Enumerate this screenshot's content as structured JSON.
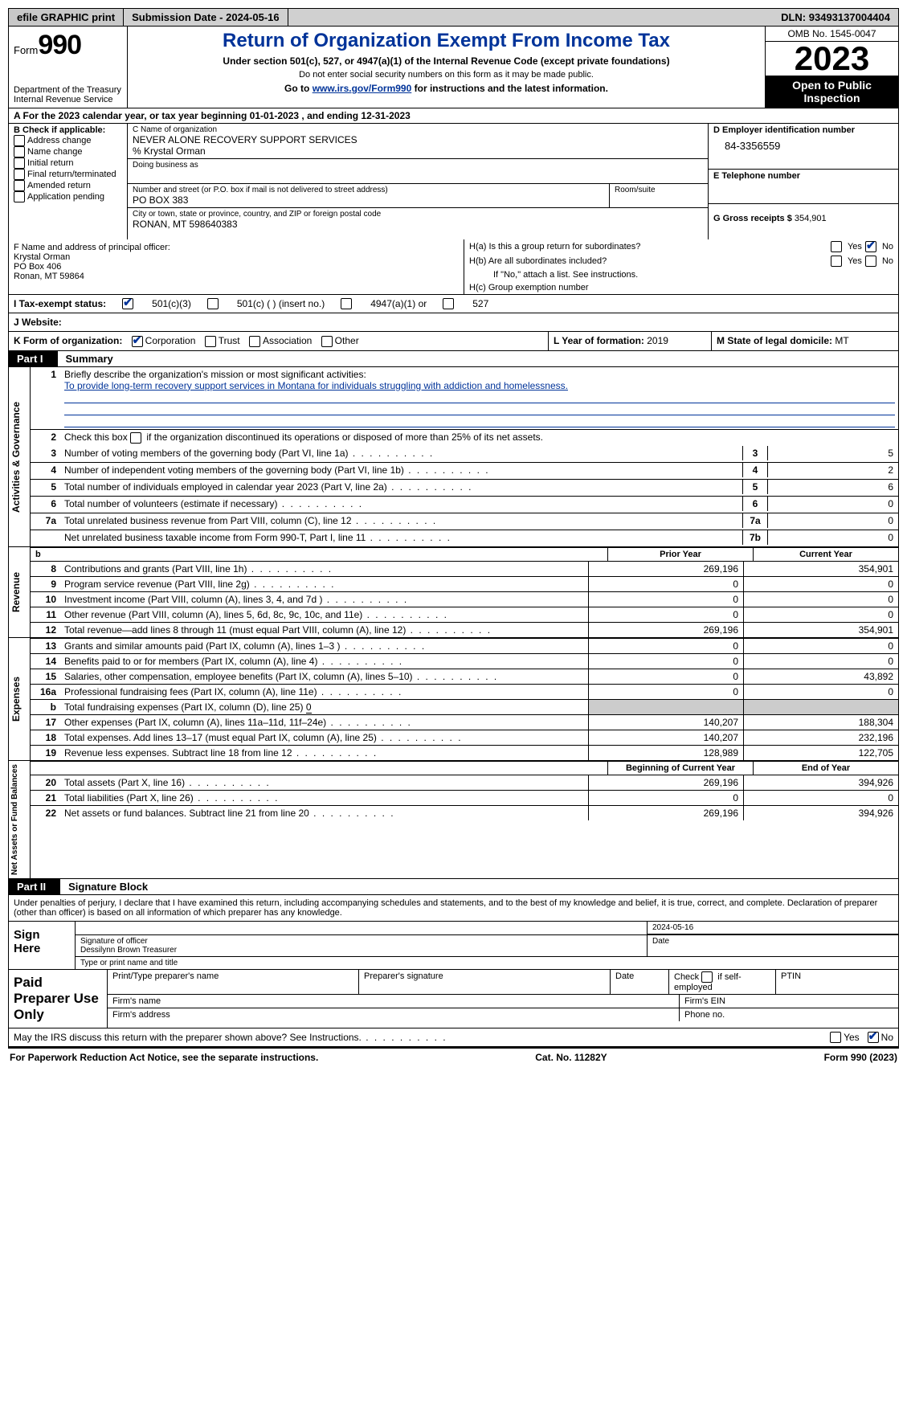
{
  "topbar": {
    "efile": "efile GRAPHIC print",
    "submission_label": "Submission Date - ",
    "submission_date": "2024-05-16",
    "dln_label": "DLN: ",
    "dln": "93493137004404"
  },
  "header": {
    "form_word": "Form",
    "form_no": "990",
    "dept": "Department of the Treasury\nInternal Revenue Service",
    "title": "Return of Organization Exempt From Income Tax",
    "sub1": "Under section 501(c), 527, or 4947(a)(1) of the Internal Revenue Code (except private foundations)",
    "sub2": "Do not enter social security numbers on this form as it may be made public.",
    "sub3_pre": "Go to ",
    "sub3_link": "www.irs.gov/Form990",
    "sub3_post": " for instructions and the latest information.",
    "omb": "OMB No. 1545-0047",
    "year": "2023",
    "opento": "Open to Public Inspection"
  },
  "row_a": {
    "text_pre": "A For the 2023 calendar year, or tax year beginning ",
    "begin": "01-01-2023",
    "mid": "   , and ending ",
    "end": "12-31-2023"
  },
  "box_b": {
    "title": "B Check if applicable:",
    "opts": [
      "Address change",
      "Name change",
      "Initial return",
      "Final return/terminated",
      "Amended return",
      "Application pending"
    ]
  },
  "box_c": {
    "label_name": "C Name of organization",
    "name": "NEVER ALONE RECOVERY SUPPORT SERVICES",
    "care_of": "% Krystal Orman",
    "dba_label": "Doing business as",
    "addr_label": "Number and street (or P.O. box if mail is not delivered to street address)",
    "room_label": "Room/suite",
    "addr": "PO BOX 383",
    "city_label": "City or town, state or province, country, and ZIP or foreign postal code",
    "city": "RONAN, MT  598640383"
  },
  "box_d": {
    "label": "D Employer identification number",
    "val": "84-3356559"
  },
  "box_e": {
    "label": "E Telephone number",
    "val": ""
  },
  "box_g": {
    "label": "G Gross receipts $ ",
    "val": "354,901"
  },
  "box_f": {
    "label": "F  Name and address of principal officer:",
    "name": "Krystal Orman",
    "addr1": "PO Box 406",
    "addr2": "Ronan, MT  59864"
  },
  "box_h": {
    "a_label": "H(a)  Is this a group return for subordinates?",
    "b_label": "H(b)  Are all subordinates included?",
    "note": "If \"No,\" attach a list. See instructions.",
    "c_label": "H(c)  Group exemption number",
    "yes": "Yes",
    "no": "No"
  },
  "row_i": {
    "label": "I   Tax-exempt status:",
    "o1": "501(c)(3)",
    "o2": "501(c) (  ) (insert no.)",
    "o3": "4947(a)(1) or",
    "o4": "527"
  },
  "row_j": {
    "label": "J   Website:",
    "val": ""
  },
  "row_k": {
    "label": "K Form of organization:",
    "opts": [
      "Corporation",
      "Trust",
      "Association",
      "Other"
    ],
    "l_label": "L Year of formation: ",
    "l_val": "2019",
    "m_label": "M State of legal domicile: ",
    "m_val": "MT"
  },
  "part1": {
    "tag": "Part I",
    "title": "Summary"
  },
  "mission": {
    "label": "Briefly describe the organization's mission or most significant activities:",
    "text": "To provide long-term recovery support services in Montana for individuals struggling with addiction and homelessness."
  },
  "line2": "Check this box           if the organization discontinued its operations or disposed of more than 25% of its net assets.",
  "gov_lines": [
    {
      "n": "3",
      "d": "Number of voting members of the governing body (Part VI, line 1a)",
      "k": "3",
      "v": "5"
    },
    {
      "n": "4",
      "d": "Number of independent voting members of the governing body (Part VI, line 1b)",
      "k": "4",
      "v": "2"
    },
    {
      "n": "5",
      "d": "Total number of individuals employed in calendar year 2023 (Part V, line 2a)",
      "k": "5",
      "v": "6"
    },
    {
      "n": "6",
      "d": "Total number of volunteers (estimate if necessary)",
      "k": "6",
      "v": "0"
    },
    {
      "n": "7a",
      "d": "Total unrelated business revenue from Part VIII, column (C), line 12",
      "k": "7a",
      "v": "0"
    },
    {
      "n": "",
      "d": "Net unrelated business taxable income from Form 990-T, Part I, line 11",
      "k": "7b",
      "v": "0"
    }
  ],
  "col_headers": {
    "prior": "Prior Year",
    "current": "Current Year"
  },
  "revenue": [
    {
      "n": "8",
      "d": "Contributions and grants (Part VIII, line 1h)",
      "p": "269,196",
      "c": "354,901"
    },
    {
      "n": "9",
      "d": "Program service revenue (Part VIII, line 2g)",
      "p": "0",
      "c": "0"
    },
    {
      "n": "10",
      "d": "Investment income (Part VIII, column (A), lines 3, 4, and 7d )",
      "p": "0",
      "c": "0"
    },
    {
      "n": "11",
      "d": "Other revenue (Part VIII, column (A), lines 5, 6d, 8c, 9c, 10c, and 11e)",
      "p": "0",
      "c": "0"
    },
    {
      "n": "12",
      "d": "Total revenue—add lines 8 through 11 (must equal Part VIII, column (A), line 12)",
      "p": "269,196",
      "c": "354,901"
    }
  ],
  "expenses": [
    {
      "n": "13",
      "d": "Grants and similar amounts paid (Part IX, column (A), lines 1–3 )",
      "p": "0",
      "c": "0"
    },
    {
      "n": "14",
      "d": "Benefits paid to or for members (Part IX, column (A), line 4)",
      "p": "0",
      "c": "0"
    },
    {
      "n": "15",
      "d": "Salaries, other compensation, employee benefits (Part IX, column (A), lines 5–10)",
      "p": "0",
      "c": "43,892"
    },
    {
      "n": "16a",
      "d": "Professional fundraising fees (Part IX, column (A), line 11e)",
      "p": "0",
      "c": "0"
    }
  ],
  "exp_b": {
    "n": "b",
    "d_pre": "Total fundraising expenses (Part IX, column (D), line 25) ",
    "d_val": "0"
  },
  "expenses2": [
    {
      "n": "17",
      "d": "Other expenses (Part IX, column (A), lines 11a–11d, 11f–24e)",
      "p": "140,207",
      "c": "188,304"
    },
    {
      "n": "18",
      "d": "Total expenses. Add lines 13–17 (must equal Part IX, column (A), line 25)",
      "p": "140,207",
      "c": "232,196"
    },
    {
      "n": "19",
      "d": "Revenue less expenses. Subtract line 18 from line 12",
      "p": "128,989",
      "c": "122,705"
    }
  ],
  "na_headers": {
    "begin": "Beginning of Current Year",
    "end": "End of Year"
  },
  "netassets": [
    {
      "n": "20",
      "d": "Total assets (Part X, line 16)",
      "p": "269,196",
      "c": "394,926"
    },
    {
      "n": "21",
      "d": "Total liabilities (Part X, line 26)",
      "p": "0",
      "c": "0"
    },
    {
      "n": "22",
      "d": "Net assets or fund balances. Subtract line 21 from line 20",
      "p": "269,196",
      "c": "394,926"
    }
  ],
  "vtabs": {
    "gov": "Activities & Governance",
    "rev": "Revenue",
    "exp": "Expenses",
    "na": "Net Assets or Fund Balances"
  },
  "part2": {
    "tag": "Part II",
    "title": "Signature Block"
  },
  "perjury": "Under penalties of perjury, I declare that I have examined this return, including accompanying schedules and statements, and to the best of my knowledge and belief, it is true, correct, and complete. Declaration of preparer (other than officer) is based on all information of which preparer has any knowledge.",
  "sign": {
    "here": "Sign Here",
    "sig_label": "Signature of officer",
    "date_label": "Date",
    "date": "2024-05-16",
    "name": "Dessilynn Brown  Treasurer",
    "name_label": "Type or print name and title"
  },
  "prep": {
    "title": "Paid Preparer Use Only",
    "h1": "Print/Type preparer's name",
    "h2": "Preparer's signature",
    "h3": "Date",
    "h4": "Check          if self-employed",
    "h5": "PTIN",
    "firm_name": "Firm's name",
    "firm_ein": "Firm's EIN",
    "firm_addr": "Firm's address",
    "phone": "Phone no."
  },
  "discuss": {
    "text": "May the IRS discuss this return with the preparer shown above? See Instructions.",
    "yes": "Yes",
    "no": "No"
  },
  "footer": {
    "left": "For Paperwork Reduction Act Notice, see the separate instructions.",
    "mid": "Cat. No. 11282Y",
    "right": "Form 990 (2023)"
  }
}
